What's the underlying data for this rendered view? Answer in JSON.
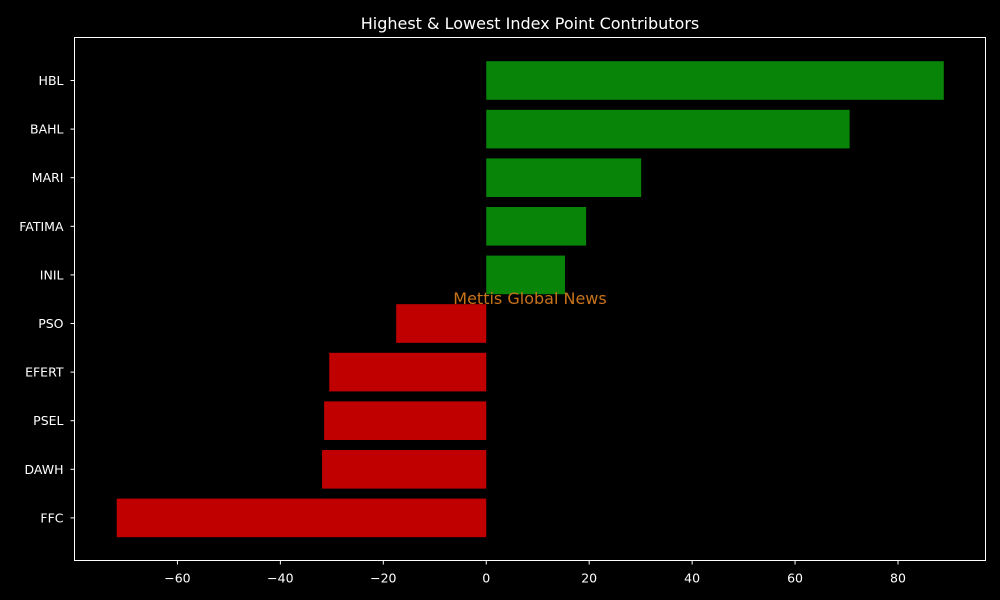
{
  "chart_data": {
    "type": "bar",
    "orientation": "horizontal",
    "title": "Highest & Lowest Index Point Contributors",
    "xlabel": "",
    "ylabel": "",
    "categories": [
      "HBL",
      "BAHL",
      "MARI",
      "FATIMA",
      "INIL",
      "PSO",
      "EFERT",
      "PSEL",
      "DAWH",
      "FFC"
    ],
    "values": [
      88.9,
      70.6,
      30.1,
      19.4,
      15.3,
      -17.5,
      -30.5,
      -31.5,
      -31.9,
      -71.8
    ],
    "xlim": [
      -80,
      97
    ],
    "xticks": [
      -60,
      -40,
      -20,
      0,
      20,
      40,
      60,
      80
    ],
    "xtick_labels": [
      "−60",
      "−40",
      "−20",
      "0",
      "20",
      "40",
      "60",
      "80"
    ],
    "grid": false,
    "legend": "none",
    "watermark": "Mettis Global News",
    "colors": {
      "positive": "#088408",
      "negative": "#c00000",
      "background": "#000000",
      "axes": "#ffffff",
      "text": "#ffffff",
      "watermark": "#c8731b"
    }
  }
}
